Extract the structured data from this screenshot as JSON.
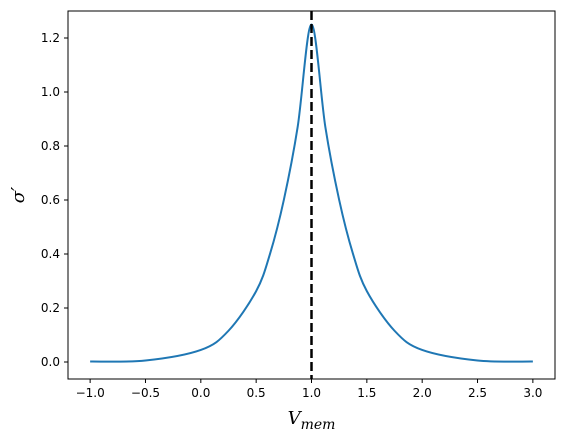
{
  "chart_data": {
    "type": "line",
    "title": "",
    "xlabel": "V",
    "xlabel_subscript": "mem",
    "ylabel": "σ′",
    "xlim": [
      -1.2,
      3.2
    ],
    "ylim": [
      -0.063,
      1.3
    ],
    "x_ticks": [
      -1.0,
      -0.5,
      0.0,
      0.5,
      1.0,
      1.5,
      2.0,
      2.5,
      3.0
    ],
    "x_tick_labels": [
      "−1.0",
      "−0.5",
      "0.0",
      "0.5",
      "1.0",
      "1.5",
      "2.0",
      "2.5",
      "3.0"
    ],
    "y_ticks": [
      0.0,
      0.2,
      0.4,
      0.6,
      0.8,
      1.0,
      1.2
    ],
    "y_tick_labels": [
      "0.0",
      "0.2",
      "0.4",
      "0.6",
      "0.8",
      "1.0",
      "1.2"
    ],
    "grid": false,
    "series": [
      {
        "color": "#1f77b4",
        "x": [
          -1.0,
          -0.5,
          0.0,
          0.25,
          0.5,
          0.625,
          0.75,
          0.875,
          1.0,
          1.125,
          1.25,
          1.375,
          1.5,
          1.75,
          2.0,
          2.5,
          3.0
        ],
        "y": [
          0.0017,
          0.0055,
          0.0446,
          0.1157,
          0.2625,
          0.4003,
          0.6003,
          0.8706,
          1.25,
          0.8706,
          0.6003,
          0.4003,
          0.2625,
          0.1157,
          0.0446,
          0.0055,
          0.0017
        ]
      }
    ],
    "vline": {
      "x": 1.0,
      "color": "#000000",
      "style": "dashed"
    }
  }
}
